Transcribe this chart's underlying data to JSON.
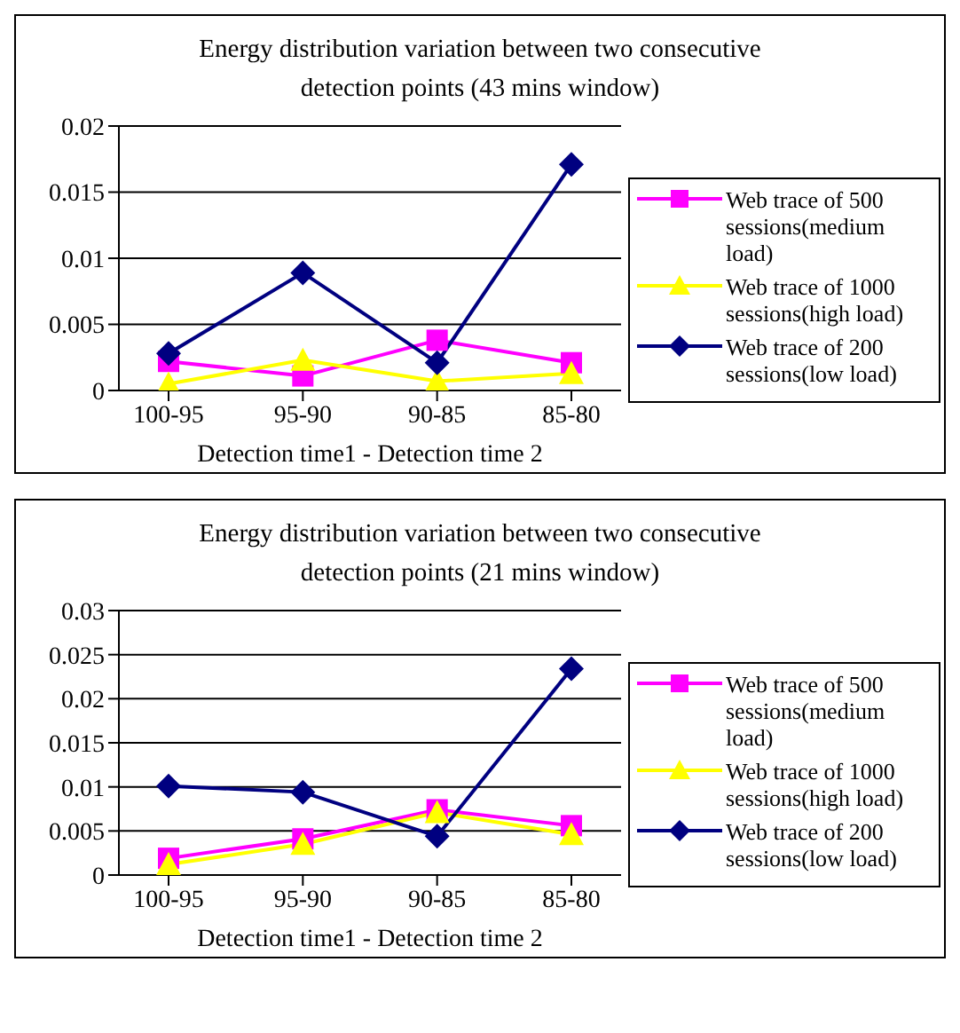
{
  "chart_data": [
    {
      "type": "line",
      "title": "Energy distribution variation between two consecutive detection points (43 mins window)",
      "xlabel": "Detection time1 - Detection time 2",
      "categories": [
        "100-95",
        "95-90",
        "90-85",
        "85-80"
      ],
      "ylim": [
        0,
        0.02
      ],
      "yticks": [
        0,
        0.005,
        0.01,
        0.015,
        0.02
      ],
      "grid": "y",
      "legend": "right",
      "series": [
        {
          "name": "Web trace of 500 sessions(medium load)",
          "color": "#ff00ff",
          "marker": "square",
          "values": [
            0.0022,
            0.0011,
            0.0038,
            0.0021
          ]
        },
        {
          "name": "Web trace of 1000 sessions(high load)",
          "color": "#ffff00",
          "marker": "triangle",
          "values": [
            0.0005,
            0.0023,
            0.0007,
            0.0013
          ]
        },
        {
          "name": "Web trace of 200 sessions(low load)",
          "color": "#000080",
          "marker": "diamond",
          "values": [
            0.0028,
            0.0089,
            0.0021,
            0.0171
          ]
        }
      ]
    },
    {
      "type": "line",
      "title": "Energy distribution variation between two consecutive detection points (21 mins window)",
      "xlabel": "Detection time1 - Detection time 2",
      "categories": [
        "100-95",
        "95-90",
        "90-85",
        "85-80"
      ],
      "ylim": [
        0,
        0.03
      ],
      "yticks": [
        0,
        0.005,
        0.01,
        0.015,
        0.02,
        0.025,
        0.03
      ],
      "grid": "y",
      "legend": "right",
      "series": [
        {
          "name": "Web trace of 500 sessions(medium load)",
          "color": "#ff00ff",
          "marker": "square",
          "values": [
            0.0019,
            0.0041,
            0.0074,
            0.0056
          ]
        },
        {
          "name": "Web trace of 1000 sessions(high load)",
          "color": "#ffff00",
          "marker": "triangle",
          "values": [
            0.0012,
            0.0035,
            0.0071,
            0.0046
          ]
        },
        {
          "name": "Web trace of 200 sessions(low load)",
          "color": "#000080",
          "marker": "diamond",
          "values": [
            0.0101,
            0.0094,
            0.0044,
            0.0234
          ]
        }
      ]
    }
  ]
}
